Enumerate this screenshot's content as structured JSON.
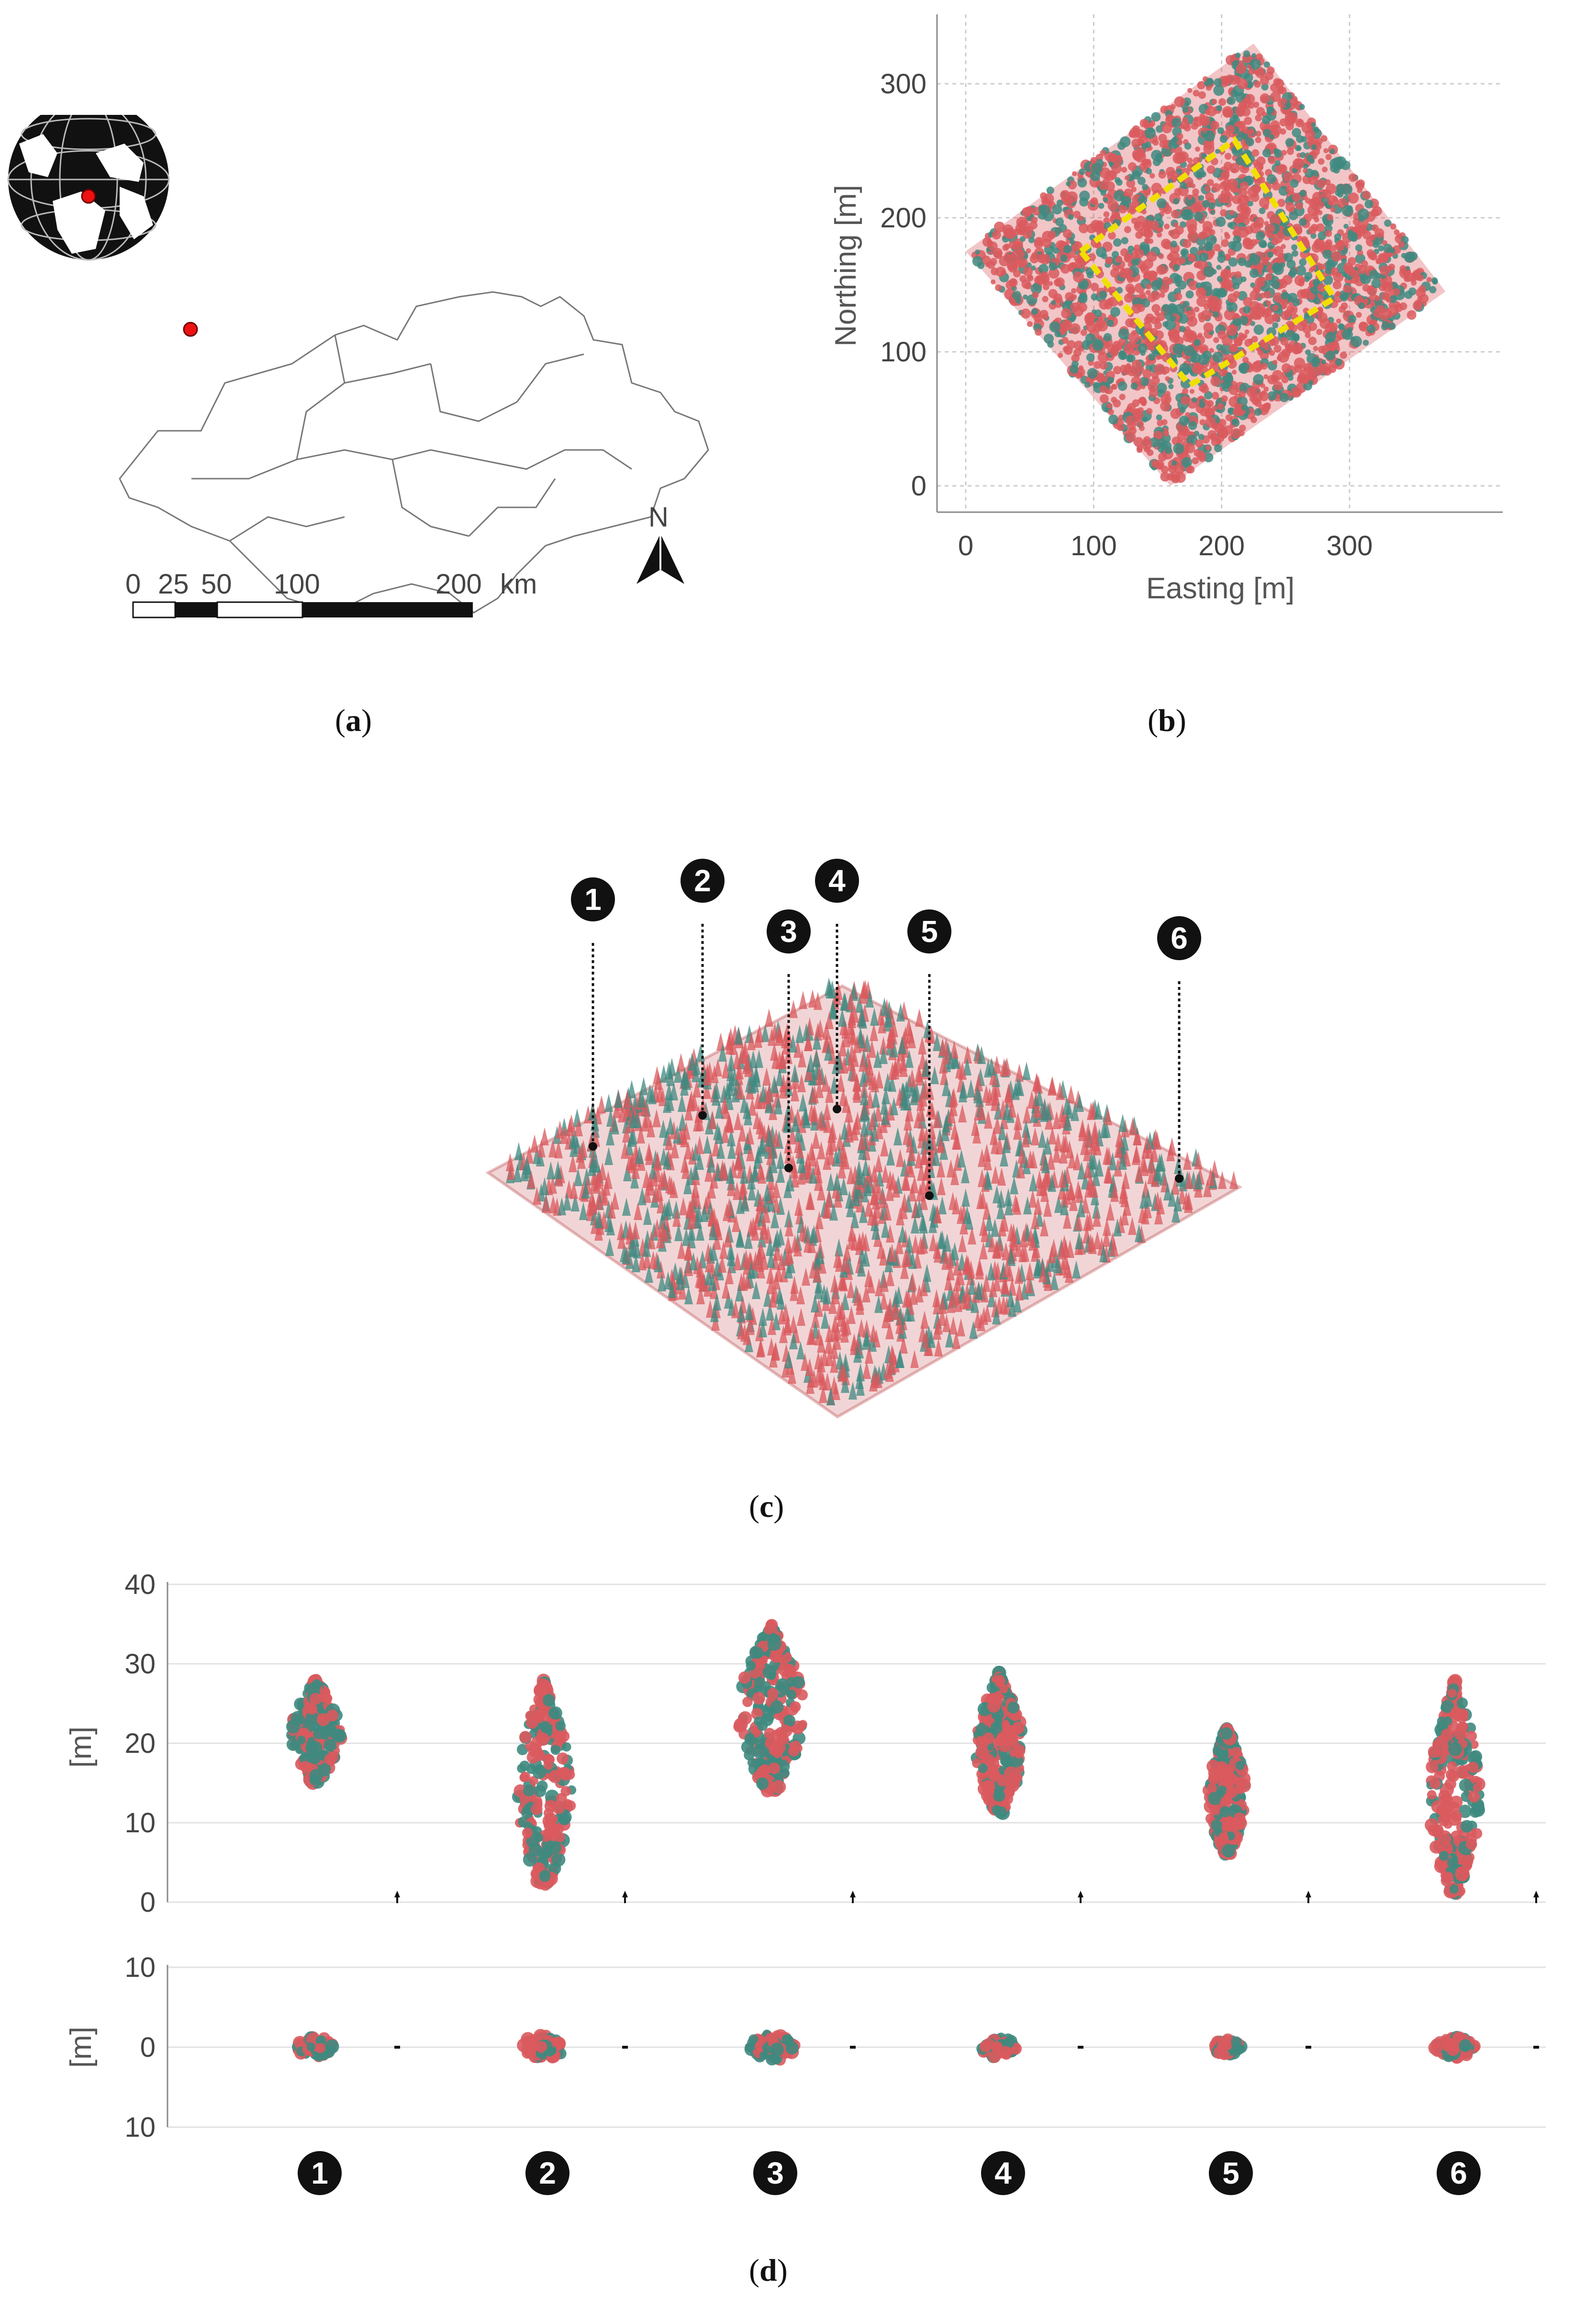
{
  "panel_a": {
    "caption_letter": "a",
    "scale_labels": [
      "0",
      "25",
      "50",
      "100",
      "200"
    ],
    "scale_unit": "km",
    "north_label": "N"
  },
  "panel_b": {
    "caption_letter": "b",
    "xlabel": "Easting [m]",
    "ylabel": "Northing [m]",
    "xticks": [
      "0",
      "100",
      "200",
      "300"
    ],
    "yticks": [
      "0",
      "100",
      "200",
      "300"
    ],
    "colors": {
      "red_points": "#d95a5e",
      "teal_points": "#3f8a80",
      "boundary": "#f0e000"
    }
  },
  "panel_c": {
    "caption_letter": "c",
    "markers": [
      "1",
      "2",
      "3",
      "4",
      "5",
      "6"
    ]
  },
  "panel_d": {
    "caption_letter": "d",
    "top_ylabel": "[m]",
    "top_yticks": [
      "40",
      "30",
      "20",
      "10",
      "0"
    ],
    "bottom_ylabel": "[m]",
    "bottom_yticks": [
      "10",
      "0",
      "10"
    ],
    "tree_labels": [
      "1",
      "2",
      "3",
      "4",
      "5",
      "6"
    ]
  },
  "chart_data": {
    "type": "scatter",
    "xlabel": "Easting [m]",
    "ylabel": "Northing [m]",
    "xlim": [
      -20,
      400
    ],
    "ylim": [
      -20,
      350
    ],
    "grid": true,
    "series": [
      {
        "values": [
          [
            0,
            175
          ],
          [
            225,
            330
          ],
          [
            375,
            145
          ],
          [
            160,
            0
          ]
        ]
      }
    ]
  }
}
